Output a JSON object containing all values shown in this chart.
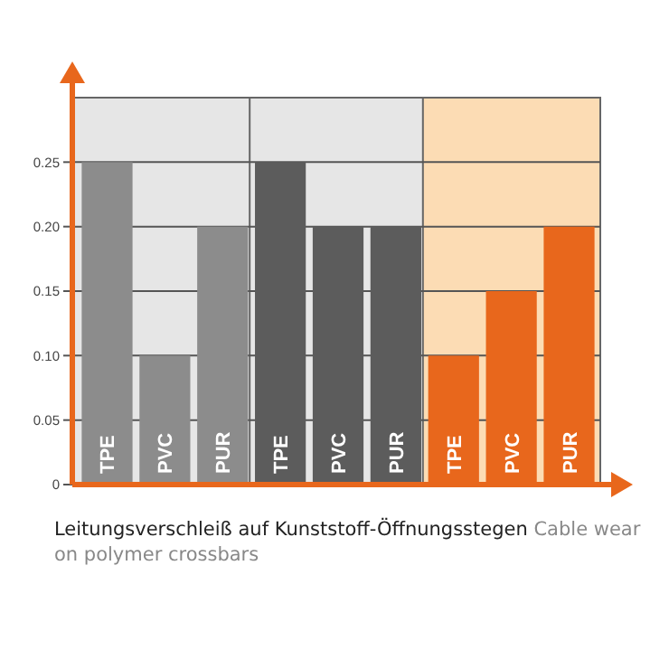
{
  "chart_data": {
    "type": "bar",
    "categories": [
      "TPE",
      "PVC",
      "PUR",
      "TPE",
      "PVC",
      "PUR",
      "TPE",
      "PVC",
      "PUR"
    ],
    "values": [
      0.25,
      0.1,
      0.2,
      0.25,
      0.2,
      0.2,
      0.1,
      0.15,
      0.2
    ],
    "colors": [
      "#8c8c8c",
      "#8c8c8c",
      "#8c8c8c",
      "#5c5c5c",
      "#5c5c5c",
      "#5c5c5c",
      "#e8671c",
      "#e8671c",
      "#e8671c"
    ],
    "ylim": [
      0,
      0.3
    ],
    "yticks": [
      0,
      {
        "value": 0.05,
        "label": "0.05"
      },
      {
        "value": 0.1,
        "label": "0.10"
      },
      {
        "value": 0.15,
        "label": "0.15"
      },
      {
        "value": 0.2,
        "label": "0.20"
      },
      {
        "value": 0.25,
        "label": "0.25"
      }
    ],
    "grid": "y",
    "annotations": [
      "Leitungsverschleiß auf Kunststoff-Öffnungsstegen",
      "Cable wear on polymer crossbars"
    ]
  }
}
